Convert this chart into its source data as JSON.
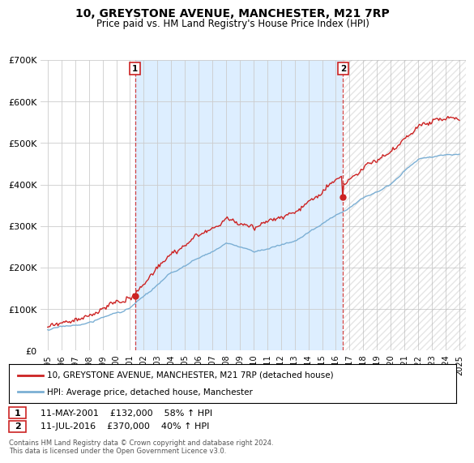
{
  "title": "10, GREYSTONE AVENUE, MANCHESTER, M21 7RP",
  "subtitle": "Price paid vs. HM Land Registry's House Price Index (HPI)",
  "ylim": [
    0,
    700000
  ],
  "yticks": [
    0,
    100000,
    200000,
    300000,
    400000,
    500000,
    600000,
    700000
  ],
  "ytick_labels": [
    "£0",
    "£100K",
    "£200K",
    "£300K",
    "£400K",
    "£500K",
    "£600K",
    "£700K"
  ],
  "hpi_color": "#7bafd4",
  "price_color": "#cc2222",
  "fill_color": "#ddeeff",
  "marker1_year": 2001.37,
  "marker2_year": 2016.53,
  "marker1_label": "1",
  "marker2_label": "2",
  "marker1_date": "11-MAY-2001",
  "marker1_amount": "£132,000",
  "marker1_hpi": "58% ↑ HPI",
  "marker2_date": "11-JUL-2016",
  "marker2_amount": "£370,000",
  "marker2_hpi": "40% ↑ HPI",
  "legend_line1": "10, GREYSTONE AVENUE, MANCHESTER, M21 7RP (detached house)",
  "legend_line2": "HPI: Average price, detached house, Manchester",
  "footer": "Contains HM Land Registry data © Crown copyright and database right 2024.\nThis data is licensed under the Open Government Licence v3.0.",
  "background_color": "#ffffff",
  "grid_color": "#cccccc",
  "xlim_start": 1995,
  "xlim_end": 2025
}
